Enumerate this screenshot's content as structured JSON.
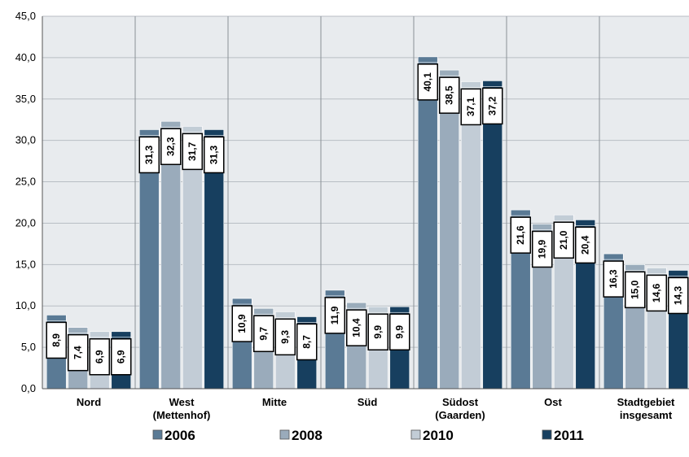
{
  "chart_data": {
    "type": "bar",
    "categories": [
      [
        "Nord"
      ],
      [
        "West",
        "(Mettenhof)"
      ],
      [
        "Mitte"
      ],
      [
        "Süd"
      ],
      [
        "Südost",
        "(Gaarden)"
      ],
      [
        "Ost"
      ],
      [
        "Stadtgebiet",
        "insgesamt"
      ]
    ],
    "series": [
      {
        "name": "2006",
        "color": "#5a7a95",
        "values": [
          8.9,
          31.3,
          10.9,
          11.9,
          40.1,
          21.6,
          16.3
        ],
        "labels": [
          "8,9",
          "31,3",
          "10,9",
          "11,9",
          "40,1",
          "21,6",
          "16,3"
        ]
      },
      {
        "name": "2008",
        "color": "#9aabbb",
        "values": [
          7.4,
          32.3,
          9.7,
          10.4,
          38.5,
          19.9,
          15.0
        ],
        "labels": [
          "7,4",
          "32,3",
          "9,7",
          "10,4",
          "38,5",
          "19,9",
          "15,0"
        ]
      },
      {
        "name": "2010",
        "color": "#c2ccd6",
        "values": [
          6.9,
          31.7,
          9.3,
          9.9,
          37.1,
          21.0,
          14.6
        ],
        "labels": [
          "6,9",
          "31,7",
          "9,3",
          "9,9",
          "37,1",
          "21,0",
          "14,6"
        ]
      },
      {
        "name": "2011",
        "color": "#173f5f",
        "values": [
          6.9,
          31.3,
          8.7,
          9.9,
          37.2,
          20.4,
          14.3
        ],
        "labels": [
          "6,9",
          "31,3",
          "8,7",
          "9,9",
          "37,2",
          "20,4",
          "14,3"
        ]
      }
    ],
    "ylim": [
      0,
      45
    ],
    "yticks": [
      "0,0",
      "5,0",
      "10,0",
      "15,0",
      "20,0",
      "25,0",
      "30,0",
      "35,0",
      "40,0",
      "45,0"
    ],
    "grid": "vertical category separators",
    "plot_background": "#e8ebee",
    "legend_position": "bottom"
  }
}
